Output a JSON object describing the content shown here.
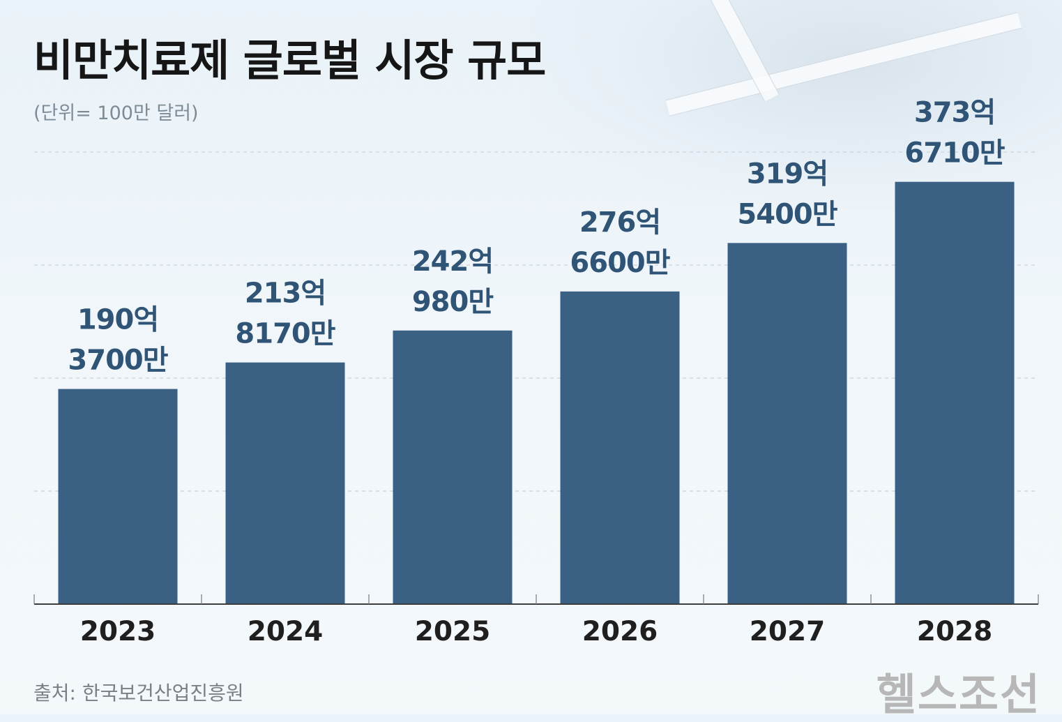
{
  "title": "비만치료제 글로벌 시장 규모",
  "unit_note": "(단위= 100만 달러)",
  "source": "출처: 한국보건산업진흥원",
  "brand": "헬스조선",
  "colors": {
    "bar": "#3a6083",
    "label": "#2f5476",
    "background": "#eef5fa"
  },
  "chart_data": {
    "type": "bar",
    "title": "비만치료제 글로벌 시장 규모",
    "xlabel": "",
    "ylabel": "",
    "unit": "100만 달러",
    "categories": [
      "2023",
      "2024",
      "2025",
      "2026",
      "2027",
      "2028"
    ],
    "values": [
      19037,
      21381.7,
      24209.8,
      27666,
      31954,
      37367.1
    ],
    "data_labels": [
      [
        "190억",
        "3700만"
      ],
      [
        "213억",
        "8170만"
      ],
      [
        "242억",
        "980만"
      ],
      [
        "276억",
        "6600만"
      ],
      [
        "319억",
        "5400만"
      ],
      [
        "373억",
        "6710만"
      ]
    ],
    "ylim": [
      0,
      40000
    ],
    "grid": true,
    "legend": "none"
  }
}
